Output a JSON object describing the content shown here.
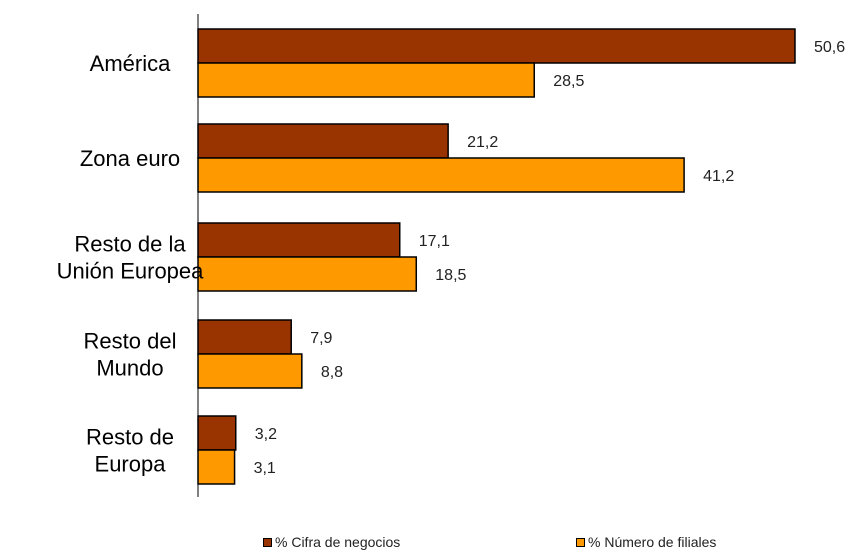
{
  "chart_data": {
    "type": "bar",
    "orientation": "horizontal",
    "categories": [
      [
        "América"
      ],
      [
        "Zona euro"
      ],
      [
        "Resto de la",
        "Unión Europea"
      ],
      [
        "Resto del",
        "Mundo"
      ],
      [
        "Resto de",
        "Europa"
      ]
    ],
    "series": [
      {
        "name": "% Cifra de negocios",
        "color": "#993300",
        "values": [
          50.6,
          21.2,
          17.1,
          7.9,
          3.2
        ],
        "labels": [
          "50,6",
          "21,2",
          "17,1",
          "7,9",
          "3,2"
        ]
      },
      {
        "name": "% Número de filiales",
        "color": "#FF9900",
        "values": [
          28.5,
          41.2,
          18.5,
          8.8,
          3.1
        ],
        "labels": [
          "28,5",
          "41,2",
          "18,5",
          "8,8",
          "3,1"
        ]
      }
    ],
    "xlim": [
      0,
      50.6
    ],
    "grid": false,
    "legend_position": "bottom"
  }
}
